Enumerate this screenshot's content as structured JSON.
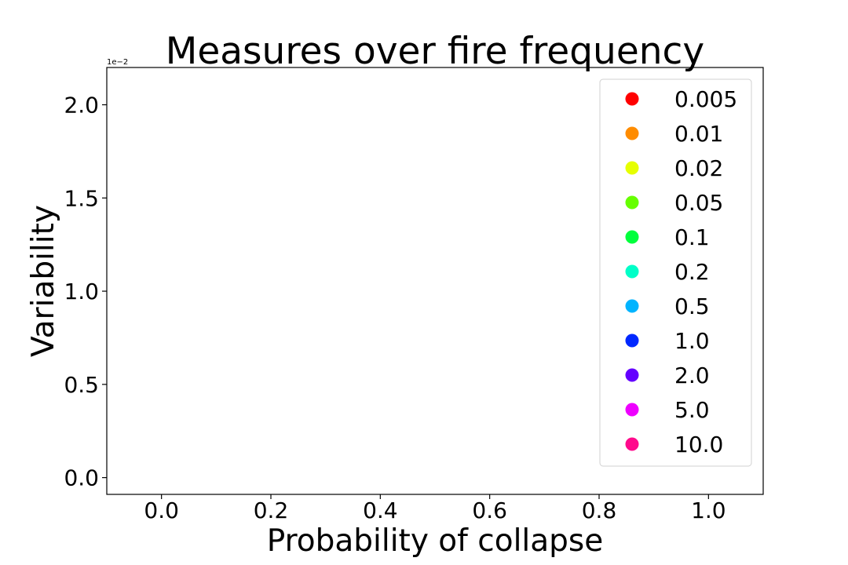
{
  "chart_data": {
    "type": "scatter",
    "title": "Measures over fire frequency",
    "xlabel": "Probability of collapse",
    "ylabel": "Variability",
    "xlim": [
      -0.1,
      1.1
    ],
    "ylim": [
      -0.0009,
      0.022
    ],
    "x_ticks": [
      0.0,
      0.2,
      0.4,
      0.6,
      0.8,
      1.0
    ],
    "x_tick_labels": [
      "0.0",
      "0.2",
      "0.4",
      "0.6",
      "0.8",
      "1.0"
    ],
    "y_ticks": [
      0.0,
      0.005,
      0.01,
      0.015,
      0.02
    ],
    "y_tick_labels": [
      "0.0",
      "0.5",
      "1.0",
      "1.5",
      "2.0"
    ],
    "y_offset_label": "1e−2",
    "grid": false,
    "legend_position": "upper-right",
    "series": [
      {
        "name": "0.005",
        "color": "#ff0000",
        "x": [],
        "y": []
      },
      {
        "name": "0.01",
        "color": "#ff8c00",
        "x": [],
        "y": []
      },
      {
        "name": "0.02",
        "color": "#e6ff00",
        "x": [],
        "y": []
      },
      {
        "name": "0.05",
        "color": "#66ff00",
        "x": [],
        "y": []
      },
      {
        "name": "0.1",
        "color": "#00ff3c",
        "x": [],
        "y": []
      },
      {
        "name": "0.2",
        "color": "#00ffc8",
        "x": [],
        "y": []
      },
      {
        "name": "0.5",
        "color": "#00b4ff",
        "x": [],
        "y": []
      },
      {
        "name": "1.0",
        "color": "#0028ff",
        "x": [],
        "y": []
      },
      {
        "name": "2.0",
        "color": "#6400ff",
        "x": [],
        "y": []
      },
      {
        "name": "5.0",
        "color": "#ee00ff",
        "x": [],
        "y": []
      },
      {
        "name": "10.0",
        "color": "#ff0a8c",
        "x": [],
        "y": []
      }
    ]
  }
}
